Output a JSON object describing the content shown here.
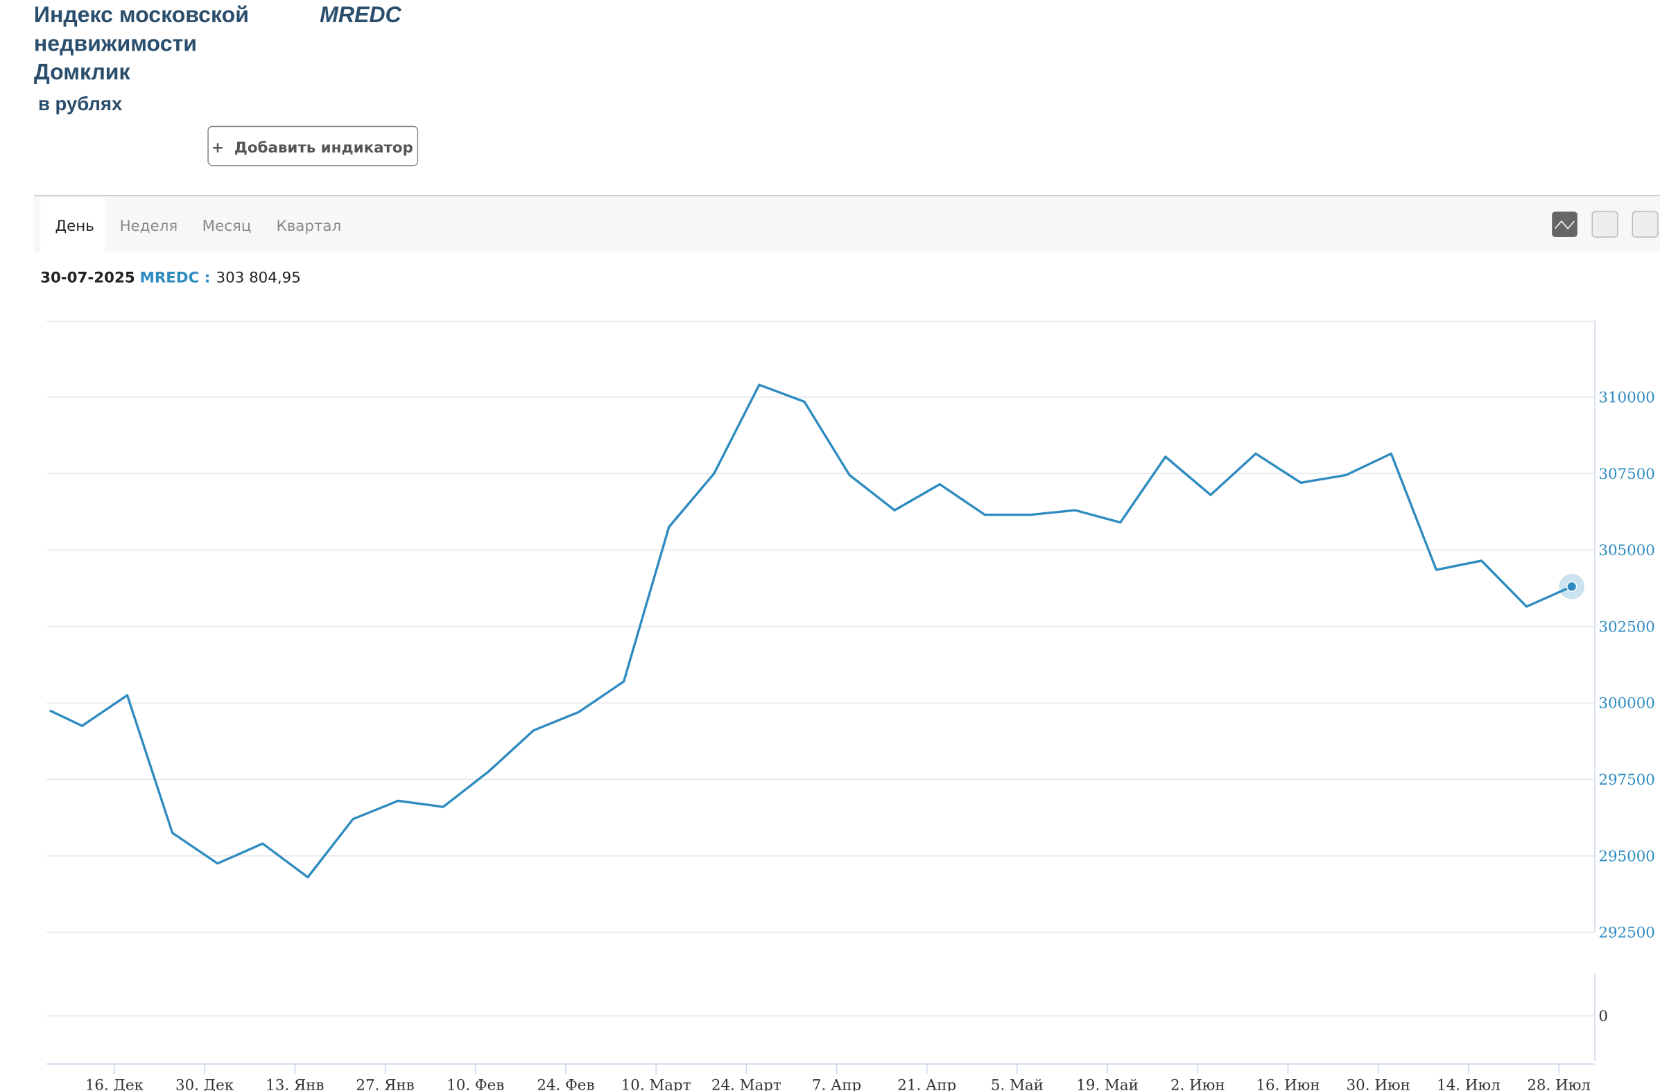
{
  "header": {
    "title_lines": [
      "Индекс московской",
      "недвижимости",
      "Домклик"
    ],
    "ticker": "MREDC",
    "subtitle": "в рублях",
    "button": "+  Добавить индикатор"
  },
  "tabs": [
    "День",
    "Неделя",
    "Месяц",
    "Квартал"
  ],
  "legend": {
    "date": "30-07-2025",
    "label": "MREDC :",
    "value": "303 804,95"
  },
  "chart_data": {
    "type": "line",
    "x": [
      -10,
      -5,
      2,
      9,
      16,
      23,
      30,
      37,
      44,
      51,
      58,
      65,
      72,
      79,
      86,
      93,
      100,
      107,
      114,
      121,
      128,
      135,
      142,
      149,
      156,
      163,
      170,
      177,
      184,
      191,
      198,
      205,
      212,
      219,
      226
    ],
    "series": [
      {
        "name": "MREDC",
        "color": "#2e8bc0",
        "values": [
          299750,
          299250,
          300250,
          295750,
          294750,
          295400,
          294300,
          296200,
          296800,
          296600,
          297750,
          299100,
          299700,
          300700,
          305750,
          307500,
          310400,
          309850,
          307450,
          306300,
          307150,
          306150,
          306150,
          306300,
          305900,
          308050,
          306800,
          308150,
          307200,
          307450,
          308150,
          304350,
          304650,
          303150,
          303804.95
        ]
      }
    ],
    "xlim": [
      -10.5,
      229.5
    ],
    "xticks": [
      {
        "value": 0,
        "label": "16. Дек"
      },
      {
        "value": 14,
        "label": "30. Дек"
      },
      {
        "value": 28,
        "label": "13. Янв"
      },
      {
        "value": 42,
        "label": "27. Янв"
      },
      {
        "value": 56,
        "label": "10. Фев"
      },
      {
        "value": 70,
        "label": "24. Фев"
      },
      {
        "value": 84,
        "label": "10. Март"
      },
      {
        "value": 98,
        "label": "24. Март"
      },
      {
        "value": 112,
        "label": "7. Апр"
      },
      {
        "value": 126,
        "label": "21. Апр"
      },
      {
        "value": 140,
        "label": "5. Май"
      },
      {
        "value": 154,
        "label": "19. Май"
      },
      {
        "value": 168,
        "label": "2. Июн"
      },
      {
        "value": 182,
        "label": "16. Июн"
      },
      {
        "value": 196,
        "label": "30. Июн"
      },
      {
        "value": 210,
        "label": "14. Июл"
      },
      {
        "value": 224,
        "label": "28. Июл"
      }
    ],
    "ylim": [
      292500,
      312500
    ],
    "yticks": [
      292500,
      295000,
      297500,
      300000,
      302500,
      305000,
      307500,
      310000
    ],
    "grid": true
  },
  "lower_pane": {
    "yticks": [
      0
    ]
  }
}
